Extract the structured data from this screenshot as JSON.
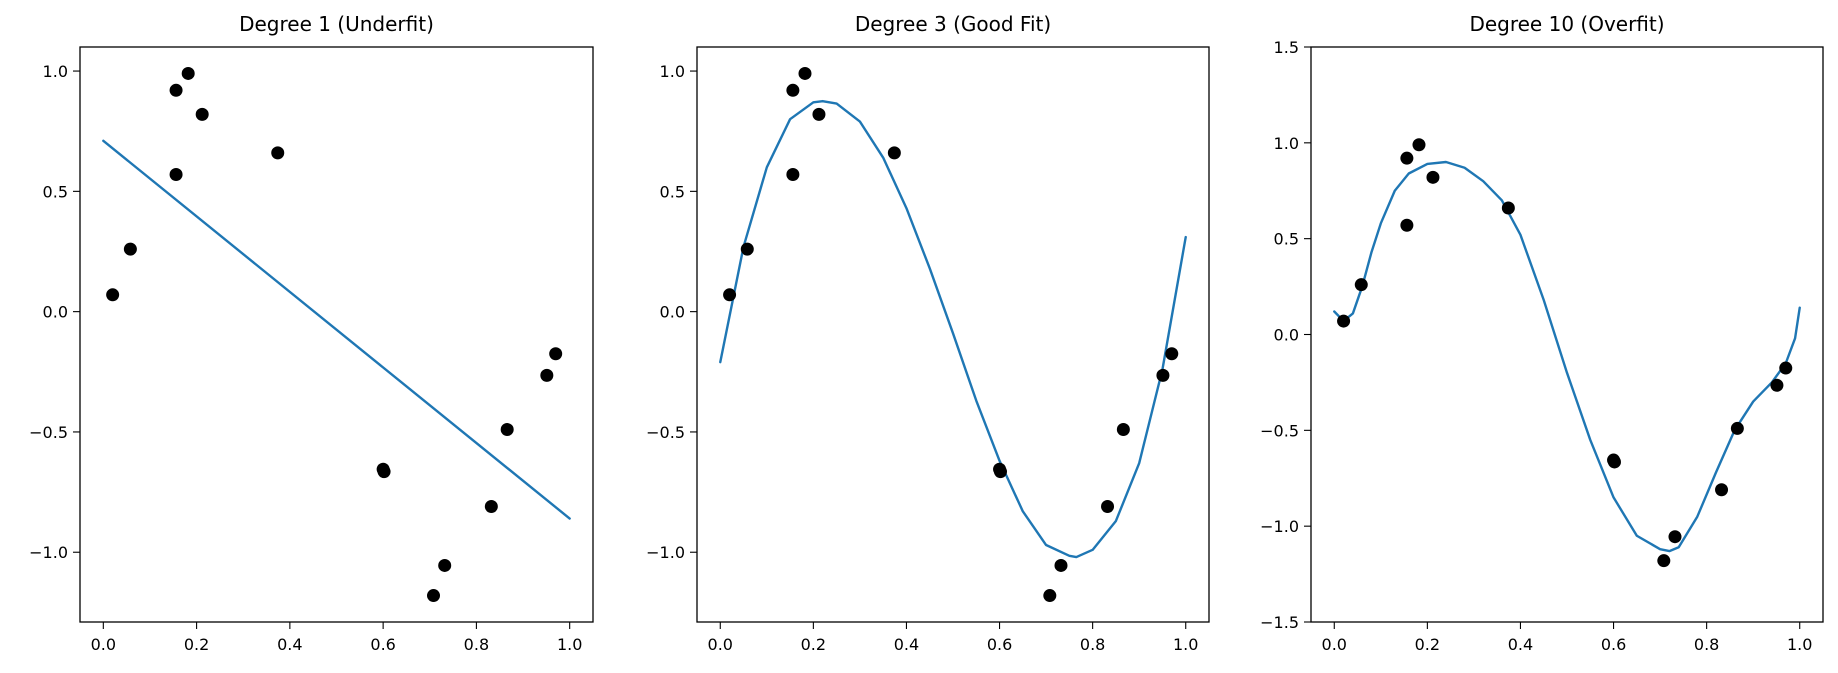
{
  "colors": {
    "fit_line": "#1f77b4",
    "points": "#000000"
  },
  "chart_data": [
    {
      "type": "scatter",
      "title": "Degree 1 (Underfit)",
      "xlabel": "",
      "ylabel": "",
      "xlim": [
        -0.05,
        1.05
      ],
      "ylim": [
        -1.29,
        1.1
      ],
      "xticks": [
        0.0,
        0.2,
        0.4,
        0.6,
        0.8,
        1.0
      ],
      "xtick_labels": [
        "0.0",
        "0.2",
        "0.4",
        "0.6",
        "0.8",
        "1.0"
      ],
      "yticks": [
        -1.0,
        -0.5,
        0.0,
        0.5,
        1.0
      ],
      "ytick_labels": [
        "−1.0",
        "−0.5",
        "0.0",
        "0.5",
        "1.0"
      ],
      "grid": false,
      "legend": "none",
      "points": {
        "x": [
          0.02,
          0.058,
          0.156,
          0.156,
          0.182,
          0.212,
          0.374,
          0.6,
          0.602,
          0.708,
          0.732,
          0.832,
          0.866,
          0.951,
          0.97
        ],
        "y": [
          0.07,
          0.26,
          0.57,
          0.92,
          0.99,
          0.82,
          0.66,
          -0.655,
          -0.665,
          -1.18,
          -1.055,
          -0.81,
          -0.49,
          -0.265,
          -0.175
        ]
      },
      "fit": {
        "degree": 1,
        "x": [
          0.0,
          1.0
        ],
        "y": [
          0.71,
          -0.86
        ]
      }
    },
    {
      "type": "scatter",
      "title": "Degree 3 (Good Fit)",
      "xlabel": "",
      "ylabel": "",
      "xlim": [
        -0.05,
        1.05
      ],
      "ylim": [
        -1.29,
        1.1
      ],
      "xticks": [
        0.0,
        0.2,
        0.4,
        0.6,
        0.8,
        1.0
      ],
      "xtick_labels": [
        "0.0",
        "0.2",
        "0.4",
        "0.6",
        "0.8",
        "1.0"
      ],
      "yticks": [
        -1.0,
        -0.5,
        0.0,
        0.5,
        1.0
      ],
      "ytick_labels": [
        "−1.0",
        "−0.5",
        "0.0",
        "0.5",
        "1.0"
      ],
      "grid": false,
      "legend": "none",
      "points": {
        "x": [
          0.02,
          0.058,
          0.156,
          0.156,
          0.182,
          0.212,
          0.374,
          0.6,
          0.602,
          0.708,
          0.732,
          0.832,
          0.866,
          0.951,
          0.97
        ],
        "y": [
          0.07,
          0.26,
          0.57,
          0.92,
          0.99,
          0.82,
          0.66,
          -0.655,
          -0.665,
          -1.18,
          -1.055,
          -0.81,
          -0.49,
          -0.265,
          -0.175
        ]
      },
      "fit": {
        "degree": 3,
        "x": [
          0.0,
          0.05,
          0.1,
          0.15,
          0.2,
          0.22,
          0.25,
          0.3,
          0.35,
          0.4,
          0.45,
          0.5,
          0.55,
          0.6,
          0.65,
          0.7,
          0.75,
          0.765,
          0.8,
          0.85,
          0.9,
          0.95,
          1.0
        ],
        "y": [
          -0.21,
          0.27,
          0.6,
          0.8,
          0.87,
          0.875,
          0.865,
          0.79,
          0.64,
          0.43,
          0.18,
          -0.09,
          -0.37,
          -0.62,
          -0.83,
          -0.97,
          -1.015,
          -1.02,
          -0.99,
          -0.87,
          -0.63,
          -0.24,
          0.31
        ]
      }
    },
    {
      "type": "scatter",
      "title": "Degree 10 (Overfit)",
      "xlabel": "",
      "ylabel": "",
      "xlim": [
        -0.05,
        1.05
      ],
      "ylim": [
        -1.5,
        1.5
      ],
      "xticks": [
        0.0,
        0.2,
        0.4,
        0.6,
        0.8,
        1.0
      ],
      "xtick_labels": [
        "0.0",
        "0.2",
        "0.4",
        "0.6",
        "0.8",
        "1.0"
      ],
      "yticks": [
        -1.5,
        -1.0,
        -0.5,
        0.0,
        0.5,
        1.0,
        1.5
      ],
      "ytick_labels": [
        "−1.5",
        "−1.0",
        "−0.5",
        "0.0",
        "0.5",
        "1.0",
        "1.5"
      ],
      "grid": false,
      "legend": "none",
      "points": {
        "x": [
          0.02,
          0.058,
          0.156,
          0.156,
          0.182,
          0.212,
          0.374,
          0.6,
          0.602,
          0.708,
          0.732,
          0.832,
          0.866,
          0.951,
          0.97
        ],
        "y": [
          0.07,
          0.26,
          0.57,
          0.92,
          0.99,
          0.82,
          0.66,
          -0.655,
          -0.665,
          -1.18,
          -1.055,
          -0.81,
          -0.49,
          -0.265,
          -0.175
        ]
      },
      "fit": {
        "degree": 10,
        "x": [
          0.0,
          0.02,
          0.04,
          0.06,
          0.08,
          0.1,
          0.13,
          0.16,
          0.2,
          0.24,
          0.28,
          0.32,
          0.36,
          0.4,
          0.45,
          0.5,
          0.55,
          0.6,
          0.65,
          0.7,
          0.72,
          0.74,
          0.78,
          0.82,
          0.86,
          0.9,
          0.94,
          0.97,
          0.99,
          1.0
        ],
        "y": [
          0.12,
          0.07,
          0.11,
          0.25,
          0.43,
          0.58,
          0.75,
          0.84,
          0.89,
          0.9,
          0.87,
          0.8,
          0.7,
          0.52,
          0.18,
          -0.2,
          -0.55,
          -0.85,
          -1.05,
          -1.12,
          -1.13,
          -1.11,
          -0.95,
          -0.72,
          -0.5,
          -0.35,
          -0.25,
          -0.15,
          -0.02,
          0.14
        ]
      }
    }
  ]
}
